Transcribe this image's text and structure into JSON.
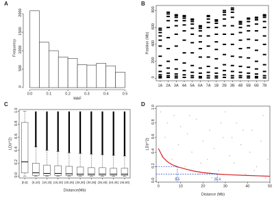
{
  "chart_data": [
    {
      "type": "histogram",
      "panel": "A",
      "xlabel": "MAF",
      "ylabel": "Frequency",
      "bins": [
        0,
        0.05,
        0.1,
        0.15,
        0.2,
        0.25,
        0.3,
        0.35,
        0.4,
        0.45,
        0.5
      ],
      "values": [
        2080,
        1230,
        1000,
        830,
        790,
        620,
        610,
        660,
        590,
        420
      ],
      "color": "#ffffff",
      "xlim": [
        -0.02,
        0.52
      ],
      "ylim": [
        0,
        2150
      ],
      "xticks": [
        {
          "value": 0,
          "label": "0.0"
        },
        0.1,
        0.2,
        0.3,
        0.4,
        0.5
      ],
      "yticks": [
        0,
        500,
        1000,
        1500,
        2000
      ]
    },
    {
      "type": "strip",
      "panel": "B",
      "ylabel": "Position (Mb)",
      "categories": [
        "1A",
        "2A",
        "3A",
        "4A",
        "5A",
        "6A",
        "7A",
        "1B",
        "2B",
        "3B",
        "4B",
        "5B",
        "6B",
        "7B"
      ],
      "values": [
        [
          5,
          20,
          40,
          80,
          150,
          260,
          380,
          450,
          500,
          540,
          570,
          590
        ],
        [
          10,
          30,
          60,
          120,
          200,
          350,
          480,
          600,
          680,
          730,
          760,
          780
        ],
        [
          5,
          25,
          50,
          110,
          220,
          380,
          520,
          620,
          680,
          720,
          740,
          750
        ],
        [
          10,
          40,
          90,
          180,
          300,
          450,
          560,
          630,
          680,
          710,
          730,
          740
        ],
        [
          8,
          30,
          70,
          150,
          300,
          420,
          520,
          590,
          640,
          670,
          690,
          700
        ],
        [
          5,
          20,
          60,
          120,
          250,
          350,
          430,
          500,
          560,
          590,
          610,
          620
        ],
        [
          5,
          30,
          70,
          140,
          250,
          380,
          500,
          600,
          660,
          700,
          730,
          740
        ],
        [
          5,
          25,
          60,
          120,
          230,
          340,
          430,
          520,
          600,
          650,
          675,
          690
        ],
        [
          10,
          40,
          90,
          160,
          280,
          400,
          520,
          620,
          700,
          750,
          780,
          800
        ],
        [
          5,
          30,
          80,
          150,
          260,
          400,
          520,
          620,
          720,
          780,
          810,
          830
        ],
        [
          8,
          30,
          70,
          140,
          250,
          350,
          450,
          540,
          600,
          640,
          660,
          670
        ],
        [
          5,
          25,
          60,
          130,
          240,
          360,
          460,
          560,
          620,
          670,
          700,
          710
        ],
        [
          5,
          20,
          50,
          110,
          200,
          330,
          450,
          560,
          640,
          690,
          710,
          720
        ],
        [
          5,
          30,
          80,
          160,
          280,
          400,
          500,
          600,
          670,
          720,
          740,
          750
        ]
      ],
      "color": "#000000",
      "ylim": [
        -30,
        860
      ],
      "yticks": [
        0,
        200,
        400,
        600,
        800
      ]
    },
    {
      "type": "box",
      "panel": "C",
      "xlabel": "Distance(Mb)",
      "ylabel": "LD(r^2)",
      "categories": [
        "[0,5]",
        "(5,10]",
        "(10,15]",
        "(15,20]",
        "(20,25]",
        "(25,30]",
        "(30,35]",
        "(35,40]",
        "(40,45]",
        "(45,50]"
      ],
      "boxes": [
        {
          "min": 0,
          "q1": 0.05,
          "median": 0.22,
          "q3": 0.83,
          "max": 1.0,
          "outlier_max": 1.0
        },
        {
          "min": 0,
          "q1": 0.01,
          "median": 0.05,
          "q3": 0.2,
          "max": 0.45,
          "outlier_max": 1.0
        },
        {
          "min": 0,
          "q1": 0.01,
          "median": 0.04,
          "q3": 0.17,
          "max": 0.4,
          "outlier_max": 1.0
        },
        {
          "min": 0,
          "q1": 0.01,
          "median": 0.04,
          "q3": 0.16,
          "max": 0.38,
          "outlier_max": 1.0
        },
        {
          "min": 0,
          "q1": 0.01,
          "median": 0.035,
          "q3": 0.15,
          "max": 0.36,
          "outlier_max": 1.0
        },
        {
          "min": 0,
          "q1": 0.01,
          "median": 0.03,
          "q3": 0.14,
          "max": 0.35,
          "outlier_max": 1.0
        },
        {
          "min": 0,
          "q1": 0.01,
          "median": 0.03,
          "q3": 0.13,
          "max": 0.34,
          "outlier_max": 1.0
        },
        {
          "min": 0,
          "q1": 0.01,
          "median": 0.03,
          "q3": 0.13,
          "max": 0.33,
          "outlier_max": 1.0
        },
        {
          "min": 0,
          "q1": 0.01,
          "median": 0.03,
          "q3": 0.12,
          "max": 0.32,
          "outlier_max": 1.0
        },
        {
          "min": 0,
          "q1": 0.01,
          "median": 0.03,
          "q3": 0.12,
          "max": 0.31,
          "outlier_max": 1.0
        }
      ],
      "ylim": [
        -0.03,
        1.03
      ],
      "yticks": [
        {
          "value": 0,
          "label": "0.0"
        },
        0.2,
        0.4,
        0.6,
        0.8,
        {
          "value": 1,
          "label": "1.0"
        }
      ]
    },
    {
      "type": "scatter",
      "panel": "D",
      "xlabel": "Distance (Mb)",
      "ylabel": "LD(r^2)",
      "points": {
        "color": "#b0b0b0",
        "x": [
          1,
          3,
          4,
          6,
          7,
          9,
          10,
          12,
          13,
          15,
          17,
          18,
          20,
          22,
          23,
          25,
          27,
          29,
          30,
          32,
          34,
          35,
          37,
          39,
          41,
          42,
          44,
          46,
          47,
          49,
          2,
          8,
          14,
          19,
          24,
          28,
          33,
          38,
          43,
          48
        ],
        "y": [
          0.95,
          0.6,
          0.8,
          0.3,
          0.9,
          0.5,
          0.75,
          0.2,
          0.65,
          0.4,
          0.85,
          0.1,
          0.55,
          0.3,
          0.7,
          0.45,
          0.15,
          0.6,
          0.95,
          0.35,
          0.25,
          0.8,
          0.5,
          0.1,
          0.4,
          0.7,
          0.2,
          0.55,
          0.9,
          0.3,
          0.35,
          0.05,
          0.9,
          0.25,
          0.05,
          0.8,
          0.6,
          0.7,
          0.15,
          0.05
        ]
      },
      "curve": {
        "color": "#d62020",
        "x": [
          0,
          2,
          4,
          6,
          8.5,
          12,
          16,
          20,
          26.4,
          32,
          40,
          50
        ],
        "y": [
          0.45,
          0.33,
          0.27,
          0.23,
          0.2,
          0.17,
          0.14,
          0.12,
          0.1,
          0.09,
          0.08,
          0.07
        ]
      },
      "annotations": [
        {
          "x": 8.5,
          "y": 0.2
        },
        {
          "x": 26.4,
          "y": 0.1
        }
      ],
      "annotation_color": "#2040c0",
      "xlim": [
        -1,
        50
      ],
      "ylim": [
        -0.01,
        1.03
      ],
      "xticks": [
        0,
        10,
        20,
        30,
        40,
        50
      ],
      "yticks": [
        {
          "value": 0,
          "label": "0.0"
        },
        0.2,
        0.4,
        0.6,
        0.8,
        {
          "value": 1,
          "label": "1.0"
        }
      ]
    }
  ]
}
